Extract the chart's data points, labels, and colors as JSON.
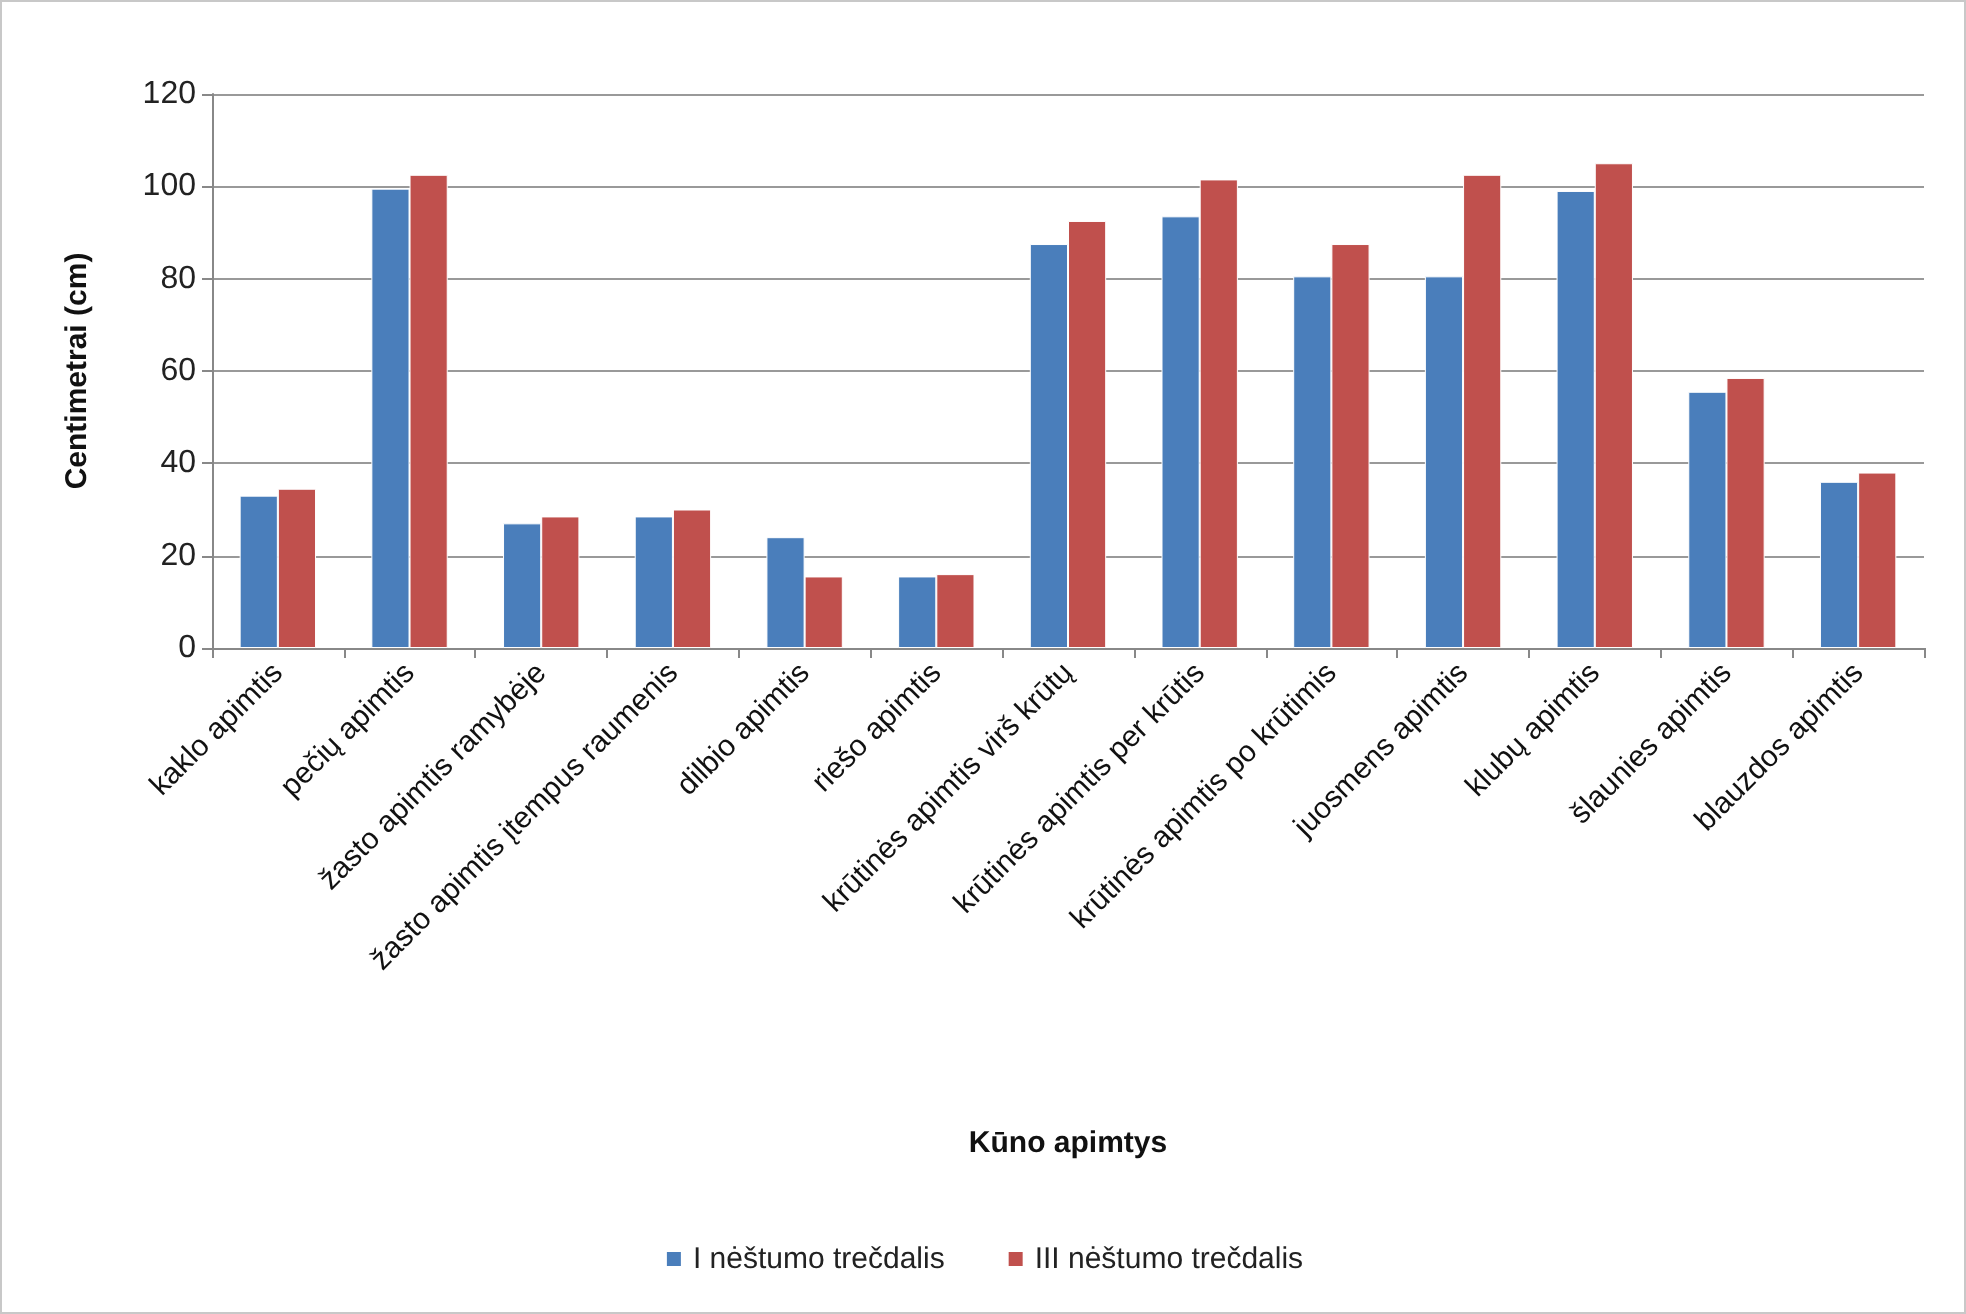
{
  "chart_data": {
    "type": "bar",
    "xlabel": "Kūno apimtys",
    "ylabel": "Centimetrai (cm)",
    "categories": [
      "kaklo apimtis",
      "pečių apimtis",
      "žasto apimtis ramybėje",
      "žasto apimtis įtempus raumenis",
      "dilbio apimtis",
      "riešo apimtis",
      "krūtinės apimtis virš krūtų",
      "krūtinės apimtis per krūtis",
      "krūtinės apimtis po krūtimis",
      "juosmens apimtis",
      "klubų apimtis",
      "šlaunies apimtis",
      "blauzdos apimtis"
    ],
    "series": [
      {
        "name": "I nėštumo trečdalis",
        "color": "#4a7ebb",
        "values": [
          33,
          99.5,
          27,
          28.5,
          24,
          15.5,
          87.5,
          93.5,
          80.5,
          80.5,
          99,
          55.5,
          36
        ]
      },
      {
        "name": "III nėštumo trečdalis",
        "color": "#c0504d",
        "values": [
          34.5,
          102.5,
          28.5,
          30,
          15.5,
          16,
          92.5,
          101.5,
          87.5,
          102.5,
          105,
          58.5,
          38
        ]
      }
    ],
    "ylim": [
      0,
      120
    ],
    "yticks": [
      0,
      20,
      40,
      60,
      80,
      100,
      120
    ],
    "grid": "y",
    "legend": "bottom"
  }
}
